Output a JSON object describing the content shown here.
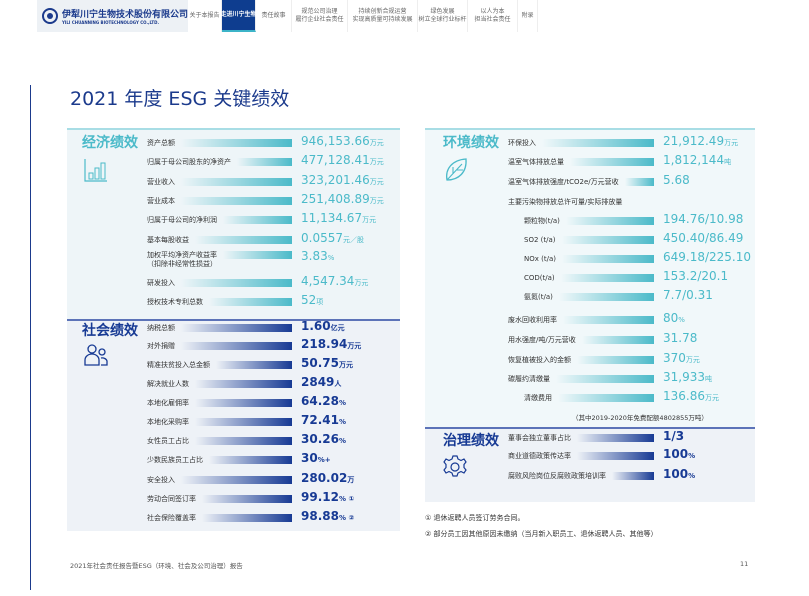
{
  "header": {
    "logo_cn": "伊犁川宁生物技术股份有限公司",
    "logo_en": "YILI CHUANNING BIOTECHNOLOGY CO.,LTD.",
    "tabs": [
      {
        "label": "关于本报告"
      },
      {
        "label": "走进川宁生物",
        "active": true
      },
      {
        "label": "责任故事"
      },
      {
        "label": "规范公司治理\n履行企业社会责任"
      },
      {
        "label": "持续创新合规运营\n实现高质量可持续发展"
      },
      {
        "label": "绿色发展\n树立全球行业标杆"
      },
      {
        "label": "以人为本\n担当社会责任"
      },
      {
        "label": "附录"
      }
    ]
  },
  "title": "2021 年度 ESG 关键绩效",
  "colors": {
    "teal": "#4bbac9",
    "blue": "#173a94"
  },
  "economic": {
    "title": "经济绩效",
    "icon": "bar-chart-icon",
    "rows": [
      {
        "label": "资产总额",
        "value": "946,153.66",
        "unit": "万元"
      },
      {
        "label": "归属于母公司股东的净资产",
        "value": "477,128.41",
        "unit": "万元"
      },
      {
        "label": "营业收入",
        "value": "323,201.46",
        "unit": "万元"
      },
      {
        "label": "营业成本",
        "value": "251,408.89",
        "unit": "万元"
      },
      {
        "label": "归属于母公司的净利润",
        "value": "11,134.67",
        "unit": "万元"
      },
      {
        "label": "基本每股收益",
        "value": "0.0557",
        "unit": "元／股"
      },
      {
        "label": "加权平均净资产收益率\n（扣除非经常性损益）",
        "value": "3.83",
        "unit": "%"
      },
      {
        "label": "研发投入",
        "value": "4,547.34",
        "unit": "万元"
      },
      {
        "label": "授权技术专利总数",
        "value": "52",
        "unit": "项"
      }
    ]
  },
  "social": {
    "title": "社会绩效",
    "icon": "people-icon",
    "rows": [
      {
        "label": "纳税总额",
        "value": "1.60",
        "unit": "亿元"
      },
      {
        "label": "对外捐赠",
        "value": "218.94",
        "unit": "万元"
      },
      {
        "label": "精准扶贫投入总金额",
        "value": "50.75",
        "unit": "万元"
      },
      {
        "label": "解决就业人数",
        "value": "2849",
        "unit": "人"
      },
      {
        "label": "本地化雇佣率",
        "value": "64.28",
        "unit": "%"
      },
      {
        "label": "本地化采购率",
        "value": "72.41",
        "unit": "%"
      },
      {
        "label": "女性员工占比",
        "value": "30.26",
        "unit": "%"
      },
      {
        "label": "少数民族员工占比",
        "value": "30",
        "unit": "%+"
      },
      {
        "label": "安全投入",
        "value": "280.02",
        "unit": "万"
      },
      {
        "label": "劳动合同签订率",
        "value": "99.12",
        "unit": "% ①"
      },
      {
        "label": "社会保险覆盖率",
        "value": "98.88",
        "unit": "% ②"
      }
    ]
  },
  "environment": {
    "title": "环境绩效",
    "icon": "leaf-icon",
    "rows": [
      {
        "label": "环保投入",
        "value": "21,912.49",
        "unit": "万元"
      },
      {
        "label": "温室气体排放总量",
        "value": "1,812,144",
        "unit": "吨"
      },
      {
        "label": "温室气体排放强度/tCO2e/万元营收",
        "value": "5.68",
        "unit": ""
      },
      {
        "label": "主要污染物排放总许可量/实际排放量",
        "header": true
      },
      {
        "label": "颗粒物(t/a)",
        "value": "194.76/10.98",
        "unit": "",
        "indent": true
      },
      {
        "label": "SO2 (t/a)",
        "value": "450.40/86.49",
        "unit": "",
        "indent": true
      },
      {
        "label": "NOx (t/a)",
        "value": "649.18/225.10",
        "unit": "",
        "indent": true
      },
      {
        "label": "COD(t/a)",
        "value": "153.2/20.1",
        "unit": "",
        "indent": true
      },
      {
        "label": "氨氮(t/a)",
        "value": "7.7/0.31",
        "unit": "",
        "indent": true
      },
      {
        "label": "废水回收利用率",
        "value": "80",
        "unit": "%"
      },
      {
        "label": "用水强度/吨/万元营收",
        "value": "31.78",
        "unit": ""
      },
      {
        "label": "恢复植被投入的金额",
        "value": "370",
        "unit": "万元"
      },
      {
        "label": "碳履约清缴量",
        "value": "31,933",
        "unit": "吨"
      },
      {
        "label": "清缴费用",
        "value": "136.86",
        "unit": "万元",
        "indent": true
      }
    ],
    "note": "（其中2019-2020年免费配额4802855万吨）"
  },
  "governance": {
    "title": "治理绩效",
    "icon": "gear-icon",
    "rows": [
      {
        "label": "董事会独立董事占比",
        "value": "1/3",
        "unit": ""
      },
      {
        "label": "商业道德政策传达率",
        "value": "100",
        "unit": "%"
      },
      {
        "label": "腐败风险岗位反腐败政策培训率",
        "value": "100",
        "unit": "%"
      }
    ]
  },
  "footnotes": [
    "① 退休返聘人员签订劳务合同。",
    "② 部分员工因其他原因未缴纳（当月新入职员工、退休返聘人员、其他等）"
  ],
  "footer": {
    "report": "2021年社会责任报告暨ESG（环境、社会及公司治理）报告",
    "page": "11"
  }
}
